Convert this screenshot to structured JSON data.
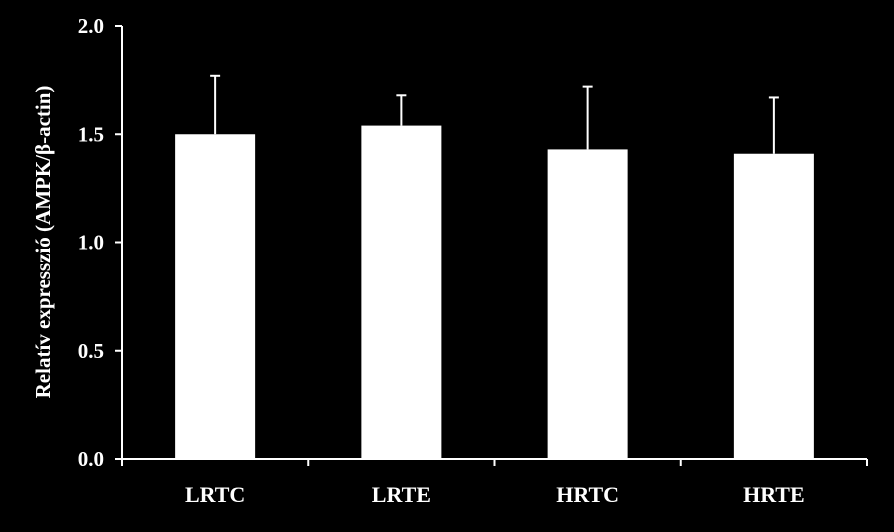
{
  "chart_data": {
    "type": "bar",
    "categories": [
      "LRTC",
      "LRTE",
      "HRTC",
      "HRTE"
    ],
    "values": [
      1.5,
      1.54,
      1.43,
      1.41
    ],
    "error_upper": [
      1.77,
      1.68,
      1.72,
      1.67
    ],
    "title": "",
    "xlabel": "",
    "ylabel": "Relatív expresszió (AMPK/β-actin)",
    "ylim": [
      0,
      2.0
    ],
    "yticks": [
      "0.0",
      "0.5",
      "1.0",
      "1.5",
      "2.0"
    ],
    "grid": false,
    "legend": "none",
    "colors": {
      "background": "#000000",
      "bar_fill": "#ffffff",
      "axis": "#ffffff",
      "text": "#ffffff"
    }
  }
}
